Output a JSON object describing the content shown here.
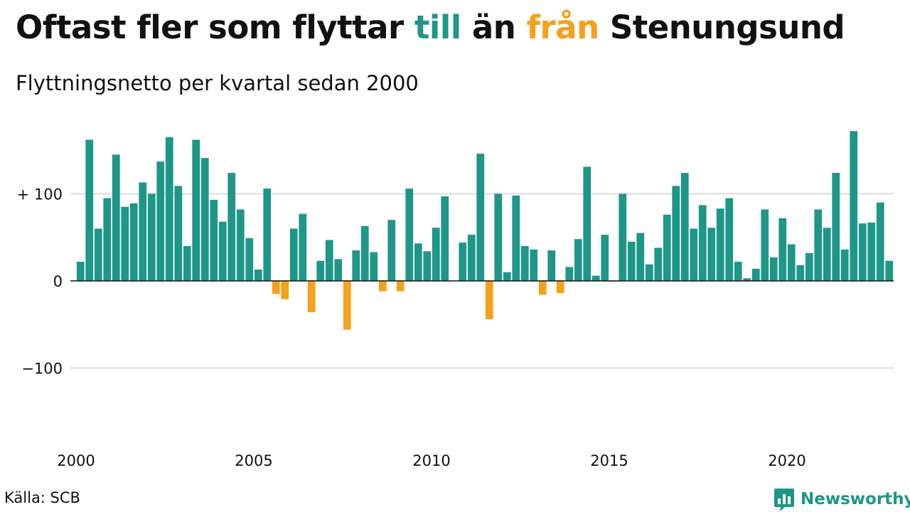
{
  "header": {
    "title_before": "Oftast fler som flyttar",
    "title_till": "till",
    "title_middle": "än",
    "title_fran": "från",
    "title_after": "Stenungsund",
    "subtitle": "Flyttningsnetto per kvartal sedan 2000"
  },
  "footer": {
    "source": "Källa: SCB",
    "brand": "Newsworthy"
  },
  "colors": {
    "positive": "#1e9688",
    "negative": "#f5a11c",
    "grid": "#dddddd",
    "axis": "#111111",
    "text": "#111111"
  },
  "chart_data": {
    "type": "bar",
    "start_year": 2000,
    "ylim": [
      -200,
      180
    ],
    "y_ticks": [
      {
        "value": 100,
        "label": "+ 100"
      },
      {
        "value": 0,
        "label": "0"
      },
      {
        "value": -100,
        "label": "−100"
      }
    ],
    "x_ticks": [
      {
        "year": 2000,
        "label": "2000"
      },
      {
        "year": 2005,
        "label": "2005"
      },
      {
        "year": 2010,
        "label": "2010"
      },
      {
        "year": 2015,
        "label": "2015"
      },
      {
        "year": 2020,
        "label": "2020"
      }
    ],
    "values": [
      22,
      162,
      60,
      95,
      145,
      85,
      89,
      113,
      100,
      137,
      165,
      109,
      40,
      162,
      141,
      93,
      68,
      124,
      82,
      49,
      13,
      106,
      -15,
      -21,
      60,
      77,
      -36,
      23,
      47,
      25,
      -56,
      35,
      63,
      33,
      -12,
      70,
      -12,
      106,
      43,
      34,
      61,
      97,
      0,
      44,
      53,
      146,
      -44,
      100,
      10,
      98,
      40,
      36,
      -16,
      35,
      -14,
      16,
      48,
      131,
      6,
      53,
      -1,
      100,
      45,
      55,
      19,
      38,
      76,
      109,
      124,
      60,
      87,
      61,
      83,
      95,
      22,
      3,
      14,
      82,
      27,
      72,
      42,
      18,
      32,
      82,
      61,
      124,
      36,
      172,
      66,
      67,
      90,
      23
    ]
  }
}
